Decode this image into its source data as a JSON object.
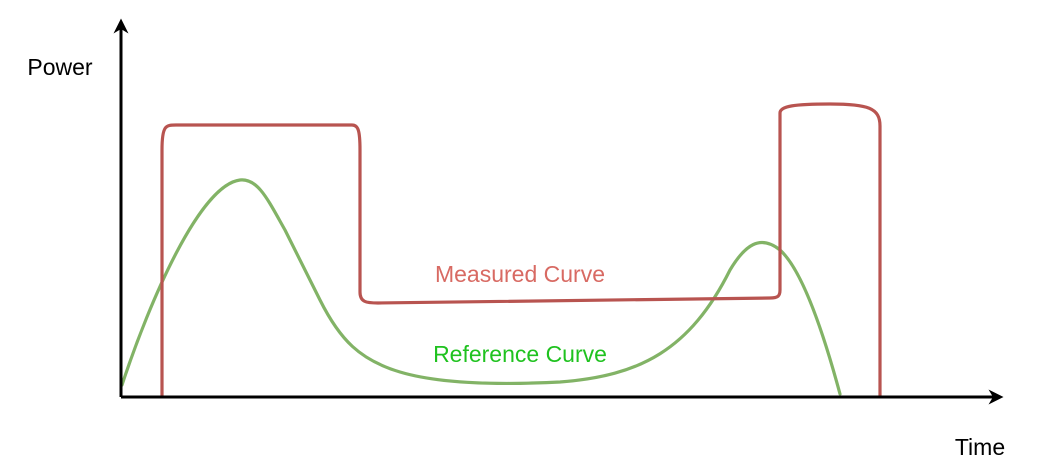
{
  "diagram": {
    "axes": {
      "y_label": "Power",
      "x_label": "Time",
      "color": "#000000"
    },
    "measured_curve": {
      "label": "Measured Curve",
      "stroke_color": "#b85450",
      "label_color": "#d86a63"
    },
    "reference_curve": {
      "label": "Reference Curve",
      "stroke_color": "#82b366",
      "label_color": "#1fc21f"
    }
  }
}
